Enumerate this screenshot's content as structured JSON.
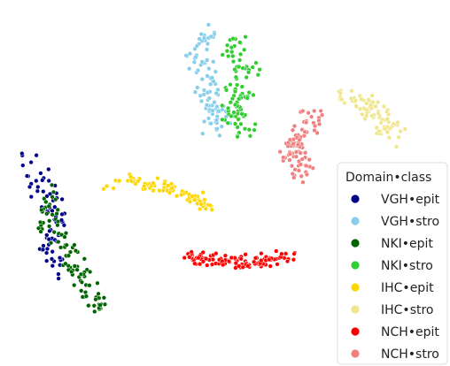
{
  "chart_data": {
    "type": "scatter",
    "title": "",
    "xlabel": "",
    "ylabel": "",
    "axes_visible": false,
    "grid": false,
    "legend_placement": "bottom-right",
    "legend": {
      "title": "Domain•class",
      "entries": [
        {
          "name": "VGH•epit",
          "color": "#00008b"
        },
        {
          "name": "VGH•stro",
          "color": "#87ceeb"
        },
        {
          "name": "NKI•epit",
          "color": "#006400"
        },
        {
          "name": "NKI•stro",
          "color": "#32cd32"
        },
        {
          "name": "IHC•epit",
          "color": "#ffd700"
        },
        {
          "name": "IHC•stro",
          "color": "#f0e68c"
        },
        {
          "name": "NCH•epit",
          "color": "#ff0000"
        },
        {
          "name": "NCH•stro",
          "color": "#f08080"
        }
      ]
    },
    "xlim": [
      0,
      100
    ],
    "ylim": [
      0,
      100
    ],
    "series": [
      {
        "name": "VGH•epit",
        "color": "#00008b",
        "n": 75,
        "seed": 11,
        "path": [
          [
            5,
            57
          ],
          [
            8,
            50
          ],
          [
            11,
            44
          ],
          [
            12,
            37
          ],
          [
            9,
            30
          ],
          [
            14,
            24
          ]
        ],
        "spread": 2.4
      },
      {
        "name": "VGH•stro",
        "color": "#87ceeb",
        "n": 95,
        "seed": 12,
        "path": [
          [
            49,
            95
          ],
          [
            46,
            86
          ],
          [
            48,
            77
          ],
          [
            50,
            70
          ],
          [
            50,
            64
          ]
        ],
        "spread": 2.5
      },
      {
        "name": "NKI•epit",
        "color": "#006400",
        "n": 95,
        "seed": 13,
        "path": [
          [
            11,
            47
          ],
          [
            10,
            39
          ],
          [
            14,
            31
          ],
          [
            17,
            24
          ],
          [
            20,
            18
          ],
          [
            22,
            14
          ]
        ],
        "spread": 2.0
      },
      {
        "name": "NKI•stro",
        "color": "#32cd32",
        "n": 95,
        "seed": 14,
        "path": [
          [
            53,
            92
          ],
          [
            56,
            84
          ],
          [
            55,
            76
          ],
          [
            54,
            70
          ],
          [
            57,
            64
          ]
        ],
        "spread": 2.6
      },
      {
        "name": "IHC•epit",
        "color": "#ffd700",
        "n": 85,
        "seed": 15,
        "path": [
          [
            24,
            49
          ],
          [
            30,
            50
          ],
          [
            36,
            49
          ],
          [
            41,
            47
          ],
          [
            45,
            45
          ],
          [
            48,
            42
          ]
        ],
        "spread": 1.4
      },
      {
        "name": "IHC•stro",
        "color": "#f0e68c",
        "n": 80,
        "seed": 16,
        "path": [
          [
            79,
            75
          ],
          [
            84,
            73
          ],
          [
            88,
            70
          ],
          [
            90,
            66
          ],
          [
            92,
            63
          ]
        ],
        "spread": 2.5
      },
      {
        "name": "NCH•epit",
        "color": "#ff0000",
        "n": 115,
        "seed": 17,
        "path": [
          [
            43,
            28
          ],
          [
            49,
            27
          ],
          [
            55,
            26
          ],
          [
            61,
            27
          ],
          [
            67,
            28
          ]
        ],
        "spread": 1.4
      },
      {
        "name": "NCH•stro",
        "color": "#f08080",
        "n": 85,
        "seed": 18,
        "path": [
          [
            73,
            70
          ],
          [
            69,
            64
          ],
          [
            68,
            58
          ],
          [
            70,
            53
          ]
        ],
        "spread": 2.3
      }
    ]
  }
}
